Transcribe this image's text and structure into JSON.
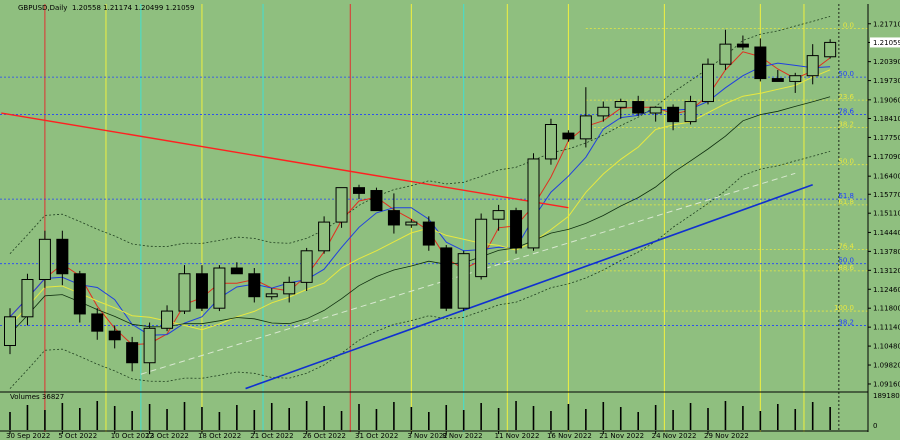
{
  "header": {
    "symbol": "GBPUSD,Daily",
    "ohlc": "1.20558 1.21174 1.20499 1.21059"
  },
  "volume_label": "Volumes 36827",
  "colors": {
    "background": "#8fbf7f",
    "bull": "#90c080",
    "bear": "#000000",
    "trend_red": "#ff2020",
    "trend_blue": "#1030d0",
    "fib_yellow": "#e8e840",
    "vline_cyan": "#40e0d0",
    "vline_yellow": "#f0f040",
    "vline_red": "#e03030"
  },
  "chart_data": {
    "type": "candlestick",
    "x_labels": [
      "30 Sep 2022",
      "5 Oct 2022",
      "10 Oct 2022",
      "13 Oct 2022",
      "18 Oct 2022",
      "21 Oct 2022",
      "26 Oct 2022",
      "31 Oct 2022",
      "3 Nov 2022",
      "8 Nov 2022",
      "11 Nov 2022",
      "16 Nov 2022",
      "21 Nov 2022",
      "24 Nov 2022",
      "29 Nov 2022"
    ],
    "y_ticks": [
      "1.21710",
      "1.21059",
      "1.20390",
      "1.19730",
      "1.19060",
      "1.18410",
      "1.17750",
      "1.17090",
      "1.16400",
      "1.15770",
      "1.15110",
      "1.14440",
      "1.13780",
      "1.13120",
      "1.12460",
      "1.11800",
      "1.11140",
      "1.10480",
      "1.09820",
      "1.09160"
    ],
    "current_price": "1.21059",
    "ylim": [
      1.0895,
      1.2205
    ],
    "candles": [
      {
        "o": 1.105,
        "h": 1.118,
        "l": 1.102,
        "c": 1.115
      },
      {
        "o": 1.115,
        "h": 1.13,
        "l": 1.112,
        "c": 1.128
      },
      {
        "o": 1.128,
        "h": 1.145,
        "l": 1.125,
        "c": 1.142
      },
      {
        "o": 1.142,
        "h": 1.145,
        "l": 1.126,
        "c": 1.13
      },
      {
        "o": 1.13,
        "h": 1.131,
        "l": 1.113,
        "c": 1.116
      },
      {
        "o": 1.116,
        "h": 1.118,
        "l": 1.107,
        "c": 1.11
      },
      {
        "o": 1.11,
        "h": 1.112,
        "l": 1.104,
        "c": 1.107
      },
      {
        "o": 1.106,
        "h": 1.108,
        "l": 1.096,
        "c": 1.099
      },
      {
        "o": 1.099,
        "h": 1.113,
        "l": 1.095,
        "c": 1.111
      },
      {
        "o": 1.111,
        "h": 1.119,
        "l": 1.11,
        "c": 1.117
      },
      {
        "o": 1.117,
        "h": 1.133,
        "l": 1.116,
        "c": 1.13
      },
      {
        "o": 1.13,
        "h": 1.133,
        "l": 1.117,
        "c": 1.118
      },
      {
        "o": 1.118,
        "h": 1.133,
        "l": 1.117,
        "c": 1.132
      },
      {
        "o": 1.132,
        "h": 1.134,
        "l": 1.13,
        "c": 1.13
      },
      {
        "o": 1.13,
        "h": 1.132,
        "l": 1.12,
        "c": 1.122
      },
      {
        "o": 1.122,
        "h": 1.125,
        "l": 1.121,
        "c": 1.123
      },
      {
        "o": 1.123,
        "h": 1.129,
        "l": 1.12,
        "c": 1.127
      },
      {
        "o": 1.127,
        "h": 1.139,
        "l": 1.124,
        "c": 1.138
      },
      {
        "o": 1.138,
        "h": 1.15,
        "l": 1.137,
        "c": 1.148
      },
      {
        "o": 1.148,
        "h": 1.16,
        "l": 1.146,
        "c": 1.16
      },
      {
        "o": 1.16,
        "h": 1.161,
        "l": 1.156,
        "c": 1.158
      },
      {
        "o": 1.159,
        "h": 1.16,
        "l": 1.152,
        "c": 1.152
      },
      {
        "o": 1.152,
        "h": 1.158,
        "l": 1.144,
        "c": 1.147
      },
      {
        "o": 1.147,
        "h": 1.149,
        "l": 1.146,
        "c": 1.148
      },
      {
        "o": 1.148,
        "h": 1.15,
        "l": 1.138,
        "c": 1.14
      },
      {
        "o": 1.139,
        "h": 1.14,
        "l": 1.117,
        "c": 1.118
      },
      {
        "o": 1.118,
        "h": 1.138,
        "l": 1.117,
        "c": 1.137
      },
      {
        "o": 1.129,
        "h": 1.151,
        "l": 1.128,
        "c": 1.149
      },
      {
        "o": 1.149,
        "h": 1.154,
        "l": 1.145,
        "c": 1.152
      },
      {
        "o": 1.152,
        "h": 1.153,
        "l": 1.137,
        "c": 1.139
      },
      {
        "o": 1.139,
        "h": 1.172,
        "l": 1.138,
        "c": 1.17
      },
      {
        "o": 1.17,
        "h": 1.184,
        "l": 1.168,
        "c": 1.182
      },
      {
        "o": 1.179,
        "h": 1.18,
        "l": 1.176,
        "c": 1.177
      },
      {
        "o": 1.177,
        "h": 1.195,
        "l": 1.174,
        "c": 1.185
      },
      {
        "o": 1.185,
        "h": 1.19,
        "l": 1.183,
        "c": 1.188
      },
      {
        "o": 1.188,
        "h": 1.191,
        "l": 1.184,
        "c": 1.19
      },
      {
        "o": 1.19,
        "h": 1.192,
        "l": 1.185,
        "c": 1.186
      },
      {
        "o": 1.186,
        "h": 1.188,
        "l": 1.183,
        "c": 1.188
      },
      {
        "o": 1.188,
        "h": 1.189,
        "l": 1.18,
        "c": 1.183
      },
      {
        "o": 1.183,
        "h": 1.192,
        "l": 1.182,
        "c": 1.19
      },
      {
        "o": 1.19,
        "h": 1.205,
        "l": 1.189,
        "c": 1.203
      },
      {
        "o": 1.203,
        "h": 1.215,
        "l": 1.201,
        "c": 1.21
      },
      {
        "o": 1.21,
        "h": 1.213,
        "l": 1.208,
        "c": 1.209
      },
      {
        "o": 1.209,
        "h": 1.212,
        "l": 1.197,
        "c": 1.198
      },
      {
        "o": 1.198,
        "h": 1.201,
        "l": 1.197,
        "c": 1.197
      },
      {
        "o": 1.197,
        "h": 1.2,
        "l": 1.193,
        "c": 1.199
      },
      {
        "o": 1.199,
        "h": 1.21,
        "l": 1.196,
        "c": 1.206
      },
      {
        "o": 1.2056,
        "h": 1.2117,
        "l": 1.205,
        "c": 1.2106
      }
    ],
    "volume_max_label": "189180",
    "volume_min_label": "0",
    "fib_levels": [
      {
        "label": "0.0",
        "price": 1.2155,
        "color": "#e8e840"
      },
      {
        "label": "50.0",
        "price": 1.1985,
        "color": "#2040ff"
      },
      {
        "label": "23.6",
        "price": 1.1905,
        "color": "#e8e840"
      },
      {
        "label": "78.6",
        "price": 1.1855,
        "color": "#2040ff"
      },
      {
        "label": "38.2",
        "price": 1.181,
        "color": "#e8e840"
      },
      {
        "label": "50.0",
        "price": 1.168,
        "color": "#e8e840"
      },
      {
        "label": "61.8",
        "price": 1.156,
        "color": "#2040ff"
      },
      {
        "label": "61.8",
        "price": 1.154,
        "color": "#e8e840"
      },
      {
        "label": "76.4",
        "price": 1.1385,
        "color": "#e8e840"
      },
      {
        "label": "50.0",
        "price": 1.1335,
        "color": "#2040ff"
      },
      {
        "label": "88.6",
        "price": 1.131,
        "color": "#e8e840"
      },
      {
        "label": "100.0",
        "price": 1.117,
        "color": "#e8e840"
      },
      {
        "label": "38.2",
        "price": 1.112,
        "color": "#2040ff"
      }
    ]
  }
}
